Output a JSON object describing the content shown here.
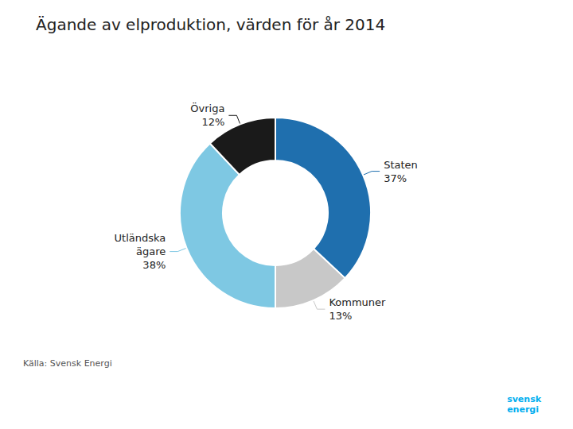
{
  "chart_data": {
    "type": "pie",
    "title": "Ägande av elproduktion, värden för år 2014",
    "categories": [
      "Staten",
      "Kommuner",
      "Utländska\nägare",
      "Övriga"
    ],
    "values": [
      37,
      13,
      38,
      12
    ],
    "value_labels": [
      "37%",
      "13%",
      "38%",
      "12%"
    ],
    "data_labels": true,
    "colors": [
      "#1F6FAE",
      "#C8C8C8",
      "#7EC8E3",
      "#1A1A1A"
    ],
    "legend": false,
    "annotations": [
      "Källa: Svensk Energi",
      "svensk\nenergi"
    ]
  }
}
